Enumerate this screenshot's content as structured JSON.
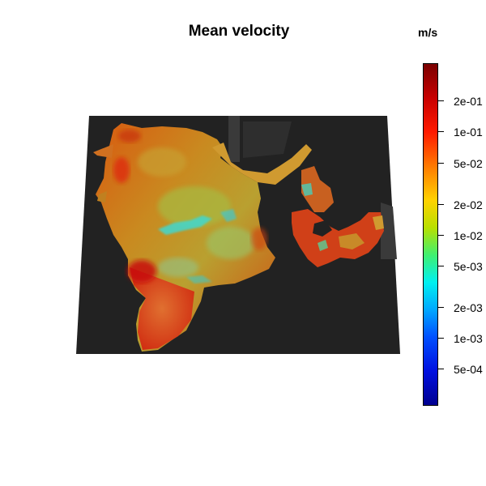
{
  "title": "Mean velocity",
  "unit": "m/s",
  "colorbar": {
    "scale": "log",
    "min_label": "",
    "ticks": [
      "2e-01",
      "1e-01",
      "5e-02",
      "2e-02",
      "1e-02",
      "5e-03",
      "2e-03",
      "1e-03",
      "5e-04"
    ],
    "colors": {
      "top": "#7a0000",
      "red": "#ff1a00",
      "orange": "#ff7a00",
      "yellow": "#ffd200",
      "green": "#40f070",
      "cyan": "#00f0f0",
      "blue": "#0050ff",
      "bottom": "#000090"
    }
  },
  "map": {
    "land_color": "#222222",
    "land_shadow": "#3a3a3a"
  }
}
